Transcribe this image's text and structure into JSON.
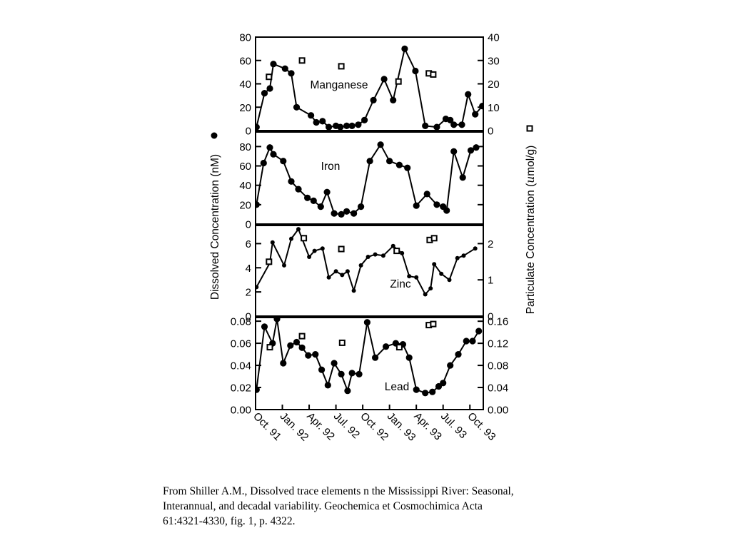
{
  "axis_titles": {
    "left": "Dissolved Concentration (nM)",
    "right": "Particulate Concentration (umol/g)",
    "right_unit_prefix": "Particulate Concentration (",
    "right_unit_mu": "u",
    "right_unit_suffix": "mol/g)"
  },
  "x_axis": {
    "tick_labels": [
      "Oct. 91",
      "Jan. 92",
      "Apr. 92",
      "Jul. 92",
      "Oct. 92",
      "Jan. 93",
      "Apr. 93",
      "Jul. 93",
      "Oct. 93"
    ],
    "tick_positions": [
      0,
      3,
      6,
      9,
      12,
      15,
      18,
      21,
      24
    ]
  },
  "legend": {
    "dissolved_marker": "filled-circle",
    "particulate_marker": "open-square"
  },
  "chart_data": [
    {
      "type": "line",
      "label": "Manganese",
      "left_ylim": [
        0,
        80
      ],
      "left_ticks": [
        0,
        20,
        40,
        60,
        80
      ],
      "left_tick_labels": [
        "0",
        "20",
        "40",
        "60",
        "80"
      ],
      "right_ylim": [
        0,
        40
      ],
      "right_ticks": [
        0,
        10,
        20,
        30,
        40
      ],
      "right_tick_labels": [
        "0",
        "10",
        "20",
        "30",
        "40"
      ],
      "series": [
        {
          "name": "dissolved",
          "marker": "filled-circle",
          "x": [
            0.1,
            1.0,
            1.6,
            2.0,
            3.3,
            4.0,
            4.6,
            6.2,
            6.8,
            7.5,
            8.2,
            9.0,
            9.5,
            10.2,
            10.8,
            11.5,
            12.2,
            13.2,
            14.4,
            15.4,
            16.7,
            17.9,
            19.0,
            20.3,
            21.3,
            21.8,
            22.2,
            23.1,
            23.8,
            24.6,
            25.4
          ],
          "y": [
            3,
            32,
            36,
            57,
            53,
            49,
            20,
            13,
            7,
            8,
            3,
            4,
            3,
            4,
            4,
            5,
            9,
            26,
            44,
            26,
            70,
            51,
            4,
            3,
            10,
            9,
            5,
            5,
            31,
            14,
            21
          ]
        },
        {
          "name": "particulate",
          "marker": "open-square",
          "x": [
            1.5,
            5.2,
            9.6,
            16.0,
            19.4,
            19.9
          ],
          "y": [
            23,
            30,
            27.5,
            21,
            24.5,
            24
          ]
        }
      ]
    },
    {
      "type": "line",
      "label": "Iron",
      "left_ylim": [
        0,
        95
      ],
      "left_ticks": [
        0,
        20,
        40,
        60,
        80
      ],
      "left_tick_labels": [
        "0",
        "20",
        "40",
        "60",
        "80"
      ],
      "right_ylim": [
        0,
        95
      ],
      "right_ticks": [
        20,
        40,
        60,
        80
      ],
      "right_tick_labels": [],
      "series": [
        {
          "name": "dissolved",
          "marker": "filled-circle",
          "x": [
            0.1,
            0.9,
            1.6,
            2.0,
            3.1,
            4.0,
            4.8,
            5.8,
            6.5,
            7.3,
            8.0,
            8.8,
            9.6,
            10.2,
            11.0,
            11.8,
            12.8,
            14.0,
            15.0,
            16.1,
            17.0,
            18.0,
            19.2,
            20.3,
            21.0,
            21.4,
            22.2,
            23.2,
            24.1,
            24.7
          ],
          "y": [
            20,
            63,
            79,
            72,
            65,
            44,
            36,
            27,
            24,
            18,
            33,
            11,
            10,
            13,
            11,
            18,
            65,
            82,
            65,
            61,
            58,
            19,
            31,
            20,
            18,
            14,
            75,
            48,
            76,
            79
          ]
        }
      ]
    },
    {
      "type": "line",
      "label": "Zinc",
      "left_ylim": [
        0,
        7.5
      ],
      "left_ticks": [
        0,
        2,
        4,
        6
      ],
      "left_tick_labels": [
        "0",
        "2",
        "4",
        "6"
      ],
      "right_ylim": [
        0,
        2.5
      ],
      "right_ticks": [
        0,
        1,
        2
      ],
      "right_tick_labels": [
        "0",
        "1",
        "2"
      ],
      "series": [
        {
          "name": "dissolved",
          "marker": "filled-circle",
          "x": [
            0.1,
            1.6,
            1.9,
            3.2,
            4.0,
            4.8,
            6.0,
            6.6,
            7.5,
            8.2,
            9.0,
            9.7,
            10.3,
            11.0,
            11.8,
            12.6,
            13.4,
            14.3,
            15.4,
            16.4,
            17.2,
            18.0,
            19.0,
            19.6,
            20.0,
            20.8,
            21.7,
            22.6,
            23.3,
            24.6
          ],
          "y": [
            2.4,
            4.4,
            6.1,
            4.2,
            6.4,
            7.2,
            4.9,
            5.4,
            5.6,
            3.2,
            3.7,
            3.4,
            3.7,
            2.1,
            4.2,
            4.9,
            5.1,
            5.0,
            5.8,
            5.2,
            3.3,
            3.2,
            1.8,
            2.3,
            4.3,
            3.5,
            3.0,
            4.8,
            5.0,
            5.6
          ]
        },
        {
          "name": "particulate",
          "marker": "open-square",
          "x": [
            1.5,
            5.4,
            9.6,
            15.8,
            19.5,
            20.0
          ],
          "y": [
            1.5,
            2.15,
            1.85,
            1.8,
            2.1,
            2.15
          ]
        }
      ]
    },
    {
      "type": "line",
      "label": "Lead",
      "left_ylim": [
        0,
        0.0833
      ],
      "left_ticks": [
        0,
        0.02,
        0.04,
        0.06,
        0.08
      ],
      "left_tick_labels": [
        "0.00",
        "0.02",
        "0.04",
        "0.06",
        "0.08"
      ],
      "right_ylim": [
        0,
        0.1667
      ],
      "right_ticks": [
        0,
        0.04,
        0.08,
        0.12,
        0.16
      ],
      "right_tick_labels": [
        "0.00",
        "0.04",
        "0.08",
        "0.12",
        "0.16"
      ],
      "series": [
        {
          "name": "dissolved",
          "marker": "filled-circle",
          "x": [
            0.1,
            1.0,
            1.9,
            2.4,
            3.1,
            3.9,
            4.6,
            5.2,
            5.9,
            6.7,
            7.4,
            8.1,
            8.8,
            9.6,
            10.3,
            10.8,
            11.6,
            12.5,
            13.4,
            14.6,
            15.7,
            16.5,
            17.2,
            18.0,
            19.0,
            19.8,
            20.5,
            21.0,
            21.8,
            22.7,
            23.6,
            24.3,
            25.0
          ],
          "y": [
            0.018,
            0.075,
            0.06,
            0.082,
            0.042,
            0.058,
            0.061,
            0.056,
            0.049,
            0.05,
            0.036,
            0.022,
            0.042,
            0.032,
            0.017,
            0.033,
            0.032,
            0.079,
            0.047,
            0.057,
            0.06,
            0.059,
            0.047,
            0.018,
            0.015,
            0.016,
            0.021,
            0.024,
            0.04,
            0.05,
            0.062,
            0.062,
            0.071
          ]
        },
        {
          "name": "particulate",
          "marker": "open-square",
          "x": [
            1.6,
            5.2,
            9.7,
            16.1,
            19.4,
            19.9
          ],
          "y": [
            0.113,
            0.133,
            0.121,
            0.113,
            0.153,
            0.155
          ]
        }
      ]
    }
  ],
  "citation": {
    "line1": "From Shiller A.M., Dissolved trace elements n the Mississippi River: Seasonal,",
    "line2": "Interannual, and decadal variability. Geochemica et Cosmochimica Acta",
    "line3": "61:4321-4330, fig. 1, p. 4322."
  }
}
